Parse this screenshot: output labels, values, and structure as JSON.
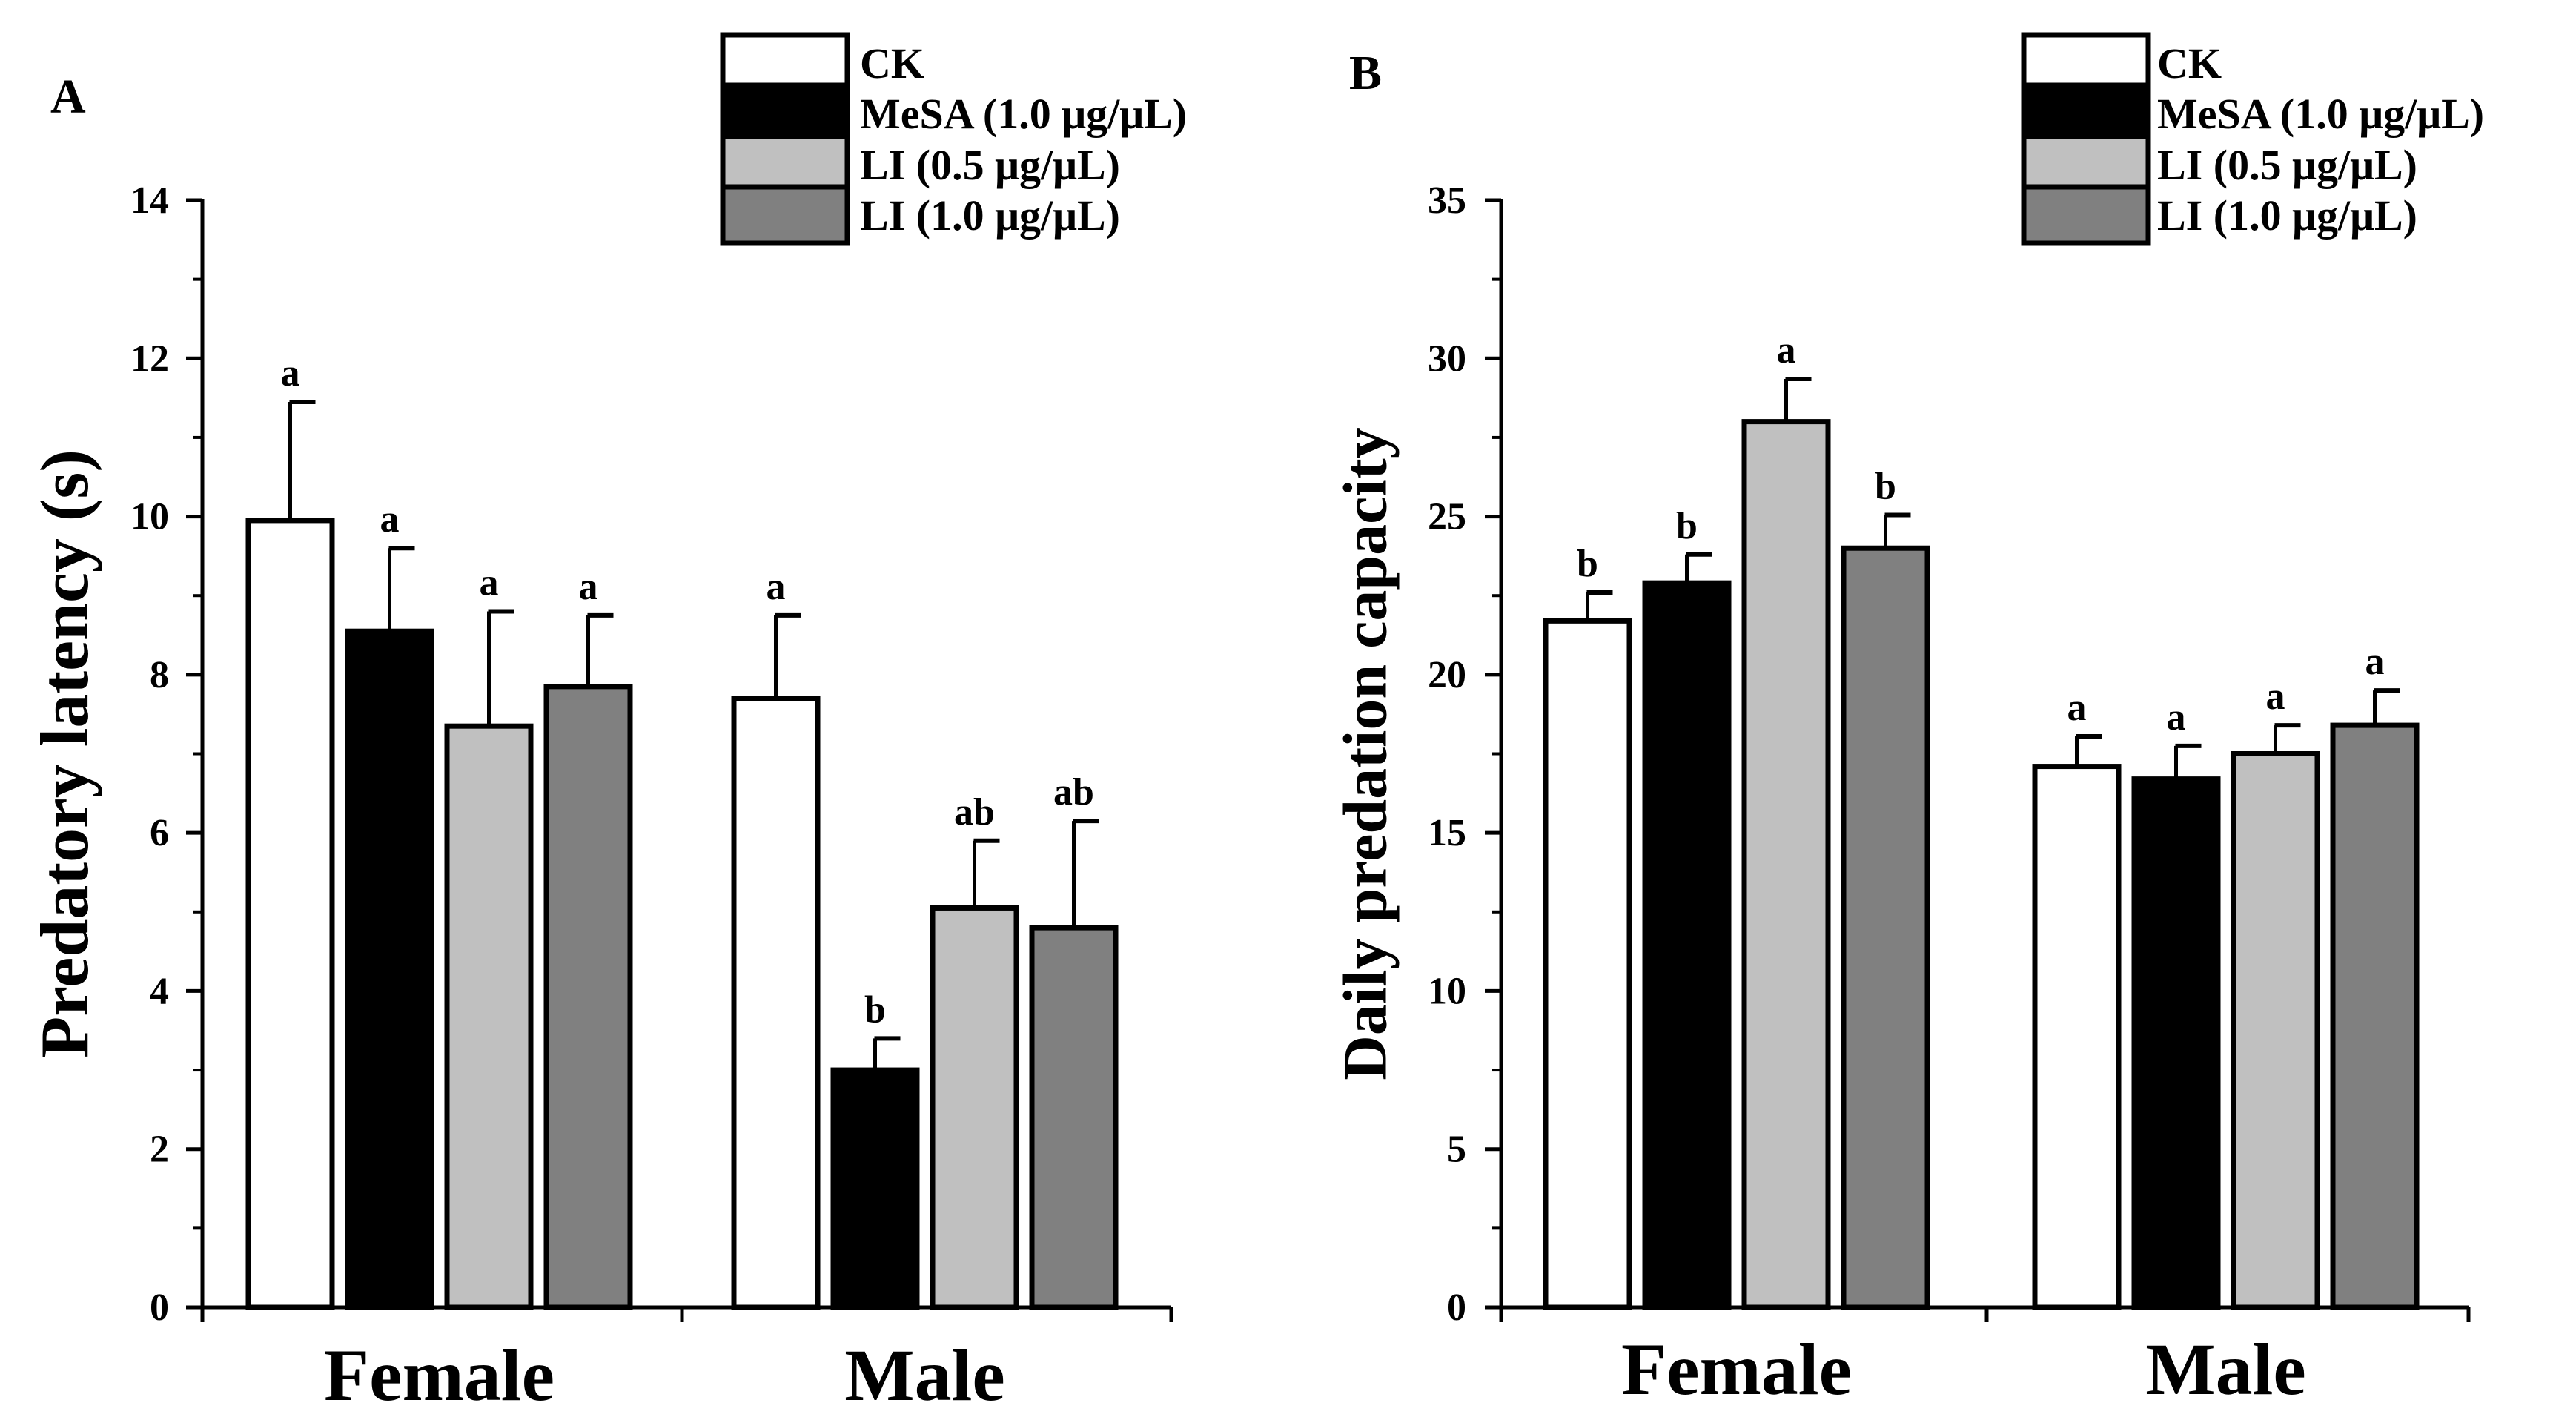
{
  "colors": {
    "CK": "#ffffff",
    "MeSA (1.0 μg/μL)": "#000000",
    "LI (0.5 μg/μL)": "#c0c0c0",
    "LI (1.0 μg/μL)": "#808080"
  },
  "chart_data": [
    {
      "type": "bar",
      "panel_label": "A",
      "title": "",
      "xlabel": "",
      "ylabel": "Predatory latency (s)",
      "categories": [
        "Female",
        "Male"
      ],
      "ylim": [
        0,
        14
      ],
      "yticks": [
        0,
        2,
        4,
        6,
        8,
        10,
        12,
        14
      ],
      "legend": [
        "CK",
        "MeSA (1.0 μg/μL)",
        "LI (0.5 μg/μL)",
        "LI (1.0 μg/μL)"
      ],
      "legend_position": "top-right",
      "error_bars": "upper",
      "series": [
        {
          "name": "CK",
          "values": [
            9.95,
            7.7
          ],
          "errors": [
            1.5,
            1.05
          ],
          "letters": [
            "a",
            "a"
          ]
        },
        {
          "name": "MeSA (1.0 μg/μL)",
          "values": [
            8.55,
            3.0
          ],
          "errors": [
            1.05,
            0.4
          ],
          "letters": [
            "a",
            "b"
          ]
        },
        {
          "name": "LI (0.5 μg/μL)",
          "values": [
            7.35,
            5.05
          ],
          "errors": [
            1.45,
            0.85
          ],
          "letters": [
            "a",
            "ab"
          ]
        },
        {
          "name": "LI (1.0 μg/μL)",
          "values": [
            7.85,
            4.8
          ],
          "errors": [
            0.9,
            1.35
          ],
          "letters": [
            "a",
            "ab"
          ]
        }
      ]
    },
    {
      "type": "bar",
      "panel_label": "B",
      "title": "",
      "xlabel": "",
      "ylabel": "Daily predation capacity",
      "categories": [
        "Female",
        "Male"
      ],
      "ylim": [
        0,
        35
      ],
      "yticks": [
        0,
        5,
        10,
        15,
        20,
        25,
        30,
        35
      ],
      "legend": [
        "CK",
        "MeSA (1.0 μg/μL)",
        "LI (0.5 μg/μL)",
        "LI (1.0 μg/μL)"
      ],
      "legend_position": "top-right",
      "error_bars": "upper",
      "series": [
        {
          "name": "CK",
          "values": [
            21.7,
            17.1
          ],
          "errors": [
            0.9,
            0.95
          ],
          "letters": [
            "b",
            "a"
          ]
        },
        {
          "name": "MeSA (1.0 μg/μL)",
          "values": [
            22.9,
            16.7
          ],
          "errors": [
            0.9,
            1.05
          ],
          "letters": [
            "b",
            "a"
          ]
        },
        {
          "name": "LI (0.5 μg/μL)",
          "values": [
            28.0,
            17.5
          ],
          "errors": [
            1.35,
            0.9
          ],
          "letters": [
            "a",
            "a"
          ]
        },
        {
          "name": "LI (1.0 μg/μL)",
          "values": [
            24.0,
            18.4
          ],
          "errors": [
            1.05,
            1.1
          ],
          "letters": [
            "b",
            "a"
          ]
        }
      ]
    }
  ]
}
